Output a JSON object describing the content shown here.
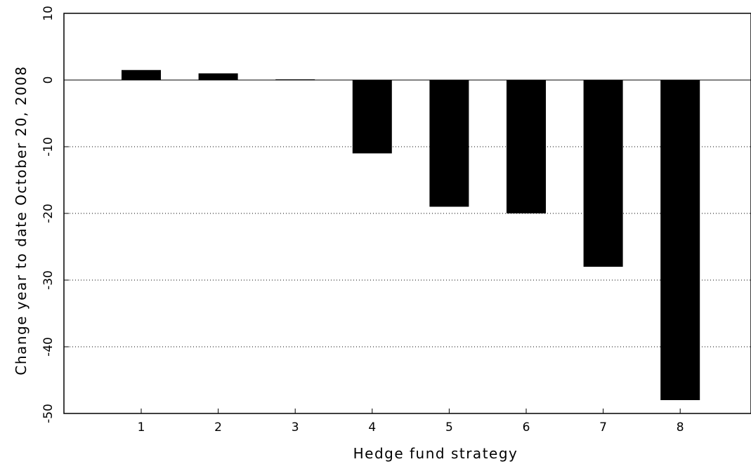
{
  "chart_data": {
    "type": "bar",
    "title": "",
    "xlabel": "Hedge fund strategy",
    "ylabel": "Change year to date October 20, 2008",
    "categories": [
      "1",
      "2",
      "3",
      "4",
      "5",
      "6",
      "7",
      "8"
    ],
    "values": [
      1.5,
      1.0,
      0.1,
      -11,
      -19,
      -20,
      -28,
      -48
    ],
    "ylim": [
      -50,
      10
    ],
    "yticks": [
      -50,
      -40,
      -30,
      -20,
      -10,
      0,
      10
    ],
    "grid": "horizontal dotted",
    "bar_color": "#000000",
    "legend": "none"
  }
}
